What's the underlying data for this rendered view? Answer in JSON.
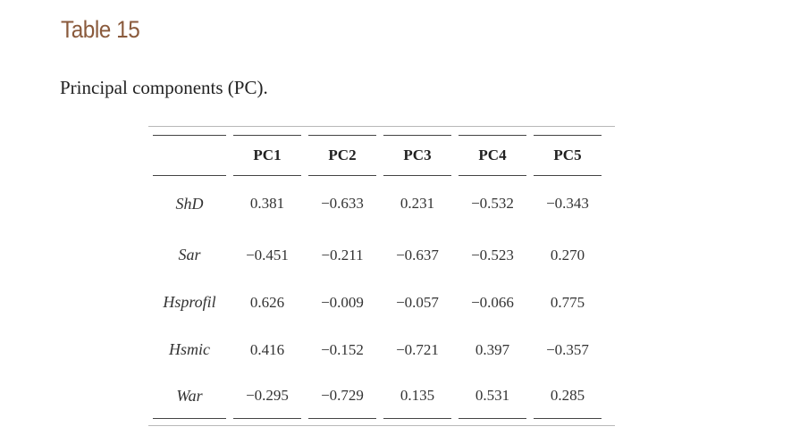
{
  "heading": "Table 15",
  "caption": "Principal components (PC).",
  "table": {
    "columns": [
      "",
      "PC1",
      "PC2",
      "PC3",
      "PC4",
      "PC5"
    ],
    "rows": [
      {
        "label": "ShD",
        "values": [
          "0.381",
          "−0.633",
          "0.231",
          "−0.532",
          "−0.343"
        ]
      },
      {
        "label": "Sar",
        "values": [
          "−0.451",
          "−0.211",
          "−0.637",
          "−0.523",
          "0.270"
        ]
      },
      {
        "label": "Hsprofil",
        "values": [
          "0.626",
          "−0.009",
          "−0.057",
          "−0.066",
          "0.775"
        ]
      },
      {
        "label": "Hsmic",
        "values": [
          "0.416",
          "−0.152",
          "−0.721",
          "0.397",
          "−0.357"
        ]
      },
      {
        "label": "War",
        "values": [
          "−0.295",
          "−0.729",
          "0.135",
          "0.531",
          "0.285"
        ]
      }
    ]
  }
}
